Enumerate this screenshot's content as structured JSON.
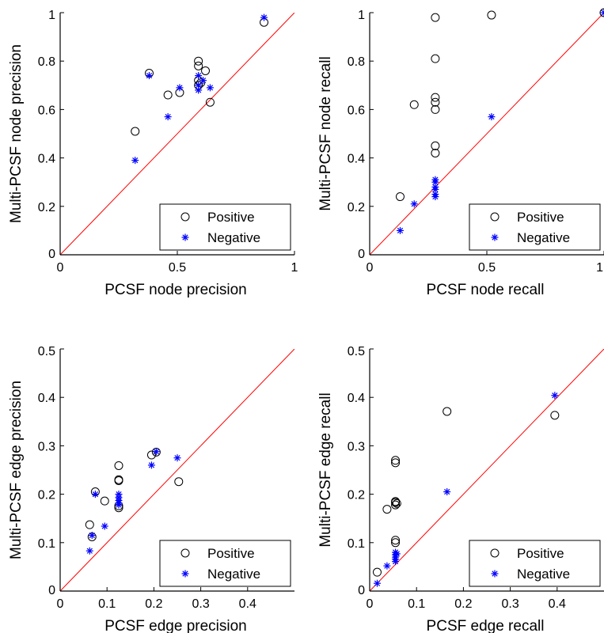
{
  "chart_data": [
    {
      "type": "scatter",
      "xlabel": "PCSF node precision",
      "ylabel": "Multi-PCSF node precision",
      "xlim": [
        0,
        1
      ],
      "ylim": [
        0,
        1
      ],
      "xticks": [
        "0",
        "0.5",
        "1"
      ],
      "yticks": [
        "0",
        "0.2",
        "0.4",
        "0.6",
        "0.8",
        "1"
      ],
      "grid": false,
      "diagonal": true,
      "legend": {
        "position": "bottom-right",
        "entries": [
          "Positive",
          "Negative"
        ]
      },
      "series": [
        {
          "name": "Positive",
          "marker": "circle",
          "color": "#000000",
          "points": [
            [
              0.32,
              0.51
            ],
            [
              0.38,
              0.75
            ],
            [
              0.46,
              0.66
            ],
            [
              0.51,
              0.67
            ],
            [
              0.59,
              0.8
            ],
            [
              0.59,
              0.78
            ],
            [
              0.59,
              0.72
            ],
            [
              0.59,
              0.7
            ],
            [
              0.6,
              0.71
            ],
            [
              0.62,
              0.76
            ],
            [
              0.64,
              0.63
            ],
            [
              0.87,
              0.96
            ]
          ]
        },
        {
          "name": "Negative",
          "marker": "asterisk",
          "color": "#0000ff",
          "points": [
            [
              0.32,
              0.39
            ],
            [
              0.38,
              0.74
            ],
            [
              0.46,
              0.57
            ],
            [
              0.51,
              0.69
            ],
            [
              0.59,
              0.74
            ],
            [
              0.59,
              0.7
            ],
            [
              0.59,
              0.68
            ],
            [
              0.61,
              0.72
            ],
            [
              0.64,
              0.69
            ],
            [
              0.87,
              0.98
            ]
          ]
        }
      ]
    },
    {
      "type": "scatter",
      "xlabel": "PCSF node recall",
      "ylabel": "Multi-PCSF node recall",
      "xlim": [
        0,
        1
      ],
      "ylim": [
        0,
        1
      ],
      "xticks": [
        "0",
        "0.5",
        "1"
      ],
      "yticks": [
        "0",
        "0.2",
        "0.4",
        "0.6",
        "0.8",
        "1"
      ],
      "grid": false,
      "diagonal": true,
      "legend": {
        "position": "bottom-right",
        "entries": [
          "Positive",
          "Negative"
        ]
      },
      "series": [
        {
          "name": "Positive",
          "marker": "circle",
          "color": "#000000",
          "points": [
            [
              0.13,
              0.24
            ],
            [
              0.19,
              0.62
            ],
            [
              0.28,
              0.98
            ],
            [
              0.28,
              0.81
            ],
            [
              0.28,
              0.65
            ],
            [
              0.28,
              0.63
            ],
            [
              0.28,
              0.6
            ],
            [
              0.28,
              0.45
            ],
            [
              0.28,
              0.42
            ],
            [
              0.52,
              0.99
            ],
            [
              1.0,
              1.0
            ]
          ]
        },
        {
          "name": "Negative",
          "marker": "asterisk",
          "color": "#0000ff",
          "points": [
            [
              0.13,
              0.1
            ],
            [
              0.19,
              0.21
            ],
            [
              0.28,
              0.31
            ],
            [
              0.28,
              0.3
            ],
            [
              0.28,
              0.28
            ],
            [
              0.28,
              0.27
            ],
            [
              0.28,
              0.25
            ],
            [
              0.28,
              0.24
            ],
            [
              0.52,
              0.57
            ],
            [
              1.0,
              1.0
            ]
          ]
        }
      ]
    },
    {
      "type": "scatter",
      "xlabel": "PCSF edge precision",
      "ylabel": "Multi-PCSF edge precision",
      "xlim": [
        0,
        0.5
      ],
      "ylim": [
        0,
        0.5
      ],
      "xticks": [
        "0",
        "0.1",
        "0.2",
        "0.3",
        "0.4"
      ],
      "yticks": [
        "0",
        "0.1",
        "0.2",
        "0.3",
        "0.4",
        "0.5"
      ],
      "grid": false,
      "diagonal": true,
      "legend": {
        "position": "bottom-right",
        "entries": [
          "Positive",
          "Negative"
        ]
      },
      "series": [
        {
          "name": "Positive",
          "marker": "circle",
          "color": "#000000",
          "points": [
            [
              0.063,
              0.137
            ],
            [
              0.068,
              0.112
            ],
            [
              0.075,
              0.205
            ],
            [
              0.095,
              0.186
            ],
            [
              0.125,
              0.259
            ],
            [
              0.125,
              0.23
            ],
            [
              0.125,
              0.228
            ],
            [
              0.125,
              0.176
            ],
            [
              0.125,
              0.172
            ],
            [
              0.195,
              0.281
            ],
            [
              0.205,
              0.287
            ],
            [
              0.253,
              0.226
            ]
          ]
        },
        {
          "name": "Negative",
          "marker": "asterisk",
          "color": "#0000ff",
          "points": [
            [
              0.063,
              0.083
            ],
            [
              0.068,
              0.115
            ],
            [
              0.075,
              0.2
            ],
            [
              0.095,
              0.134
            ],
            [
              0.125,
              0.2
            ],
            [
              0.125,
              0.193
            ],
            [
              0.125,
              0.187
            ],
            [
              0.125,
              0.182
            ],
            [
              0.125,
              0.178
            ],
            [
              0.195,
              0.26
            ],
            [
              0.205,
              0.288
            ],
            [
              0.25,
              0.275
            ]
          ]
        }
      ]
    },
    {
      "type": "scatter",
      "xlabel": "PCSF edge recall",
      "ylabel": "Multi-PCSF edge recall",
      "xlim": [
        0,
        0.5
      ],
      "ylim": [
        0,
        0.5
      ],
      "xticks": [
        "0",
        "0.1",
        "0.2",
        "0.3",
        "0.4"
      ],
      "yticks": [
        "0",
        "0.1",
        "0.2",
        "0.3",
        "0.4",
        "0.5"
      ],
      "grid": false,
      "diagonal": true,
      "legend": {
        "position": "bottom-right",
        "entries": [
          "Positive",
          "Negative"
        ]
      },
      "series": [
        {
          "name": "Positive",
          "marker": "circle",
          "color": "#000000",
          "points": [
            [
              0.016,
              0.039
            ],
            [
              0.037,
              0.169
            ],
            [
              0.055,
              0.27
            ],
            [
              0.055,
              0.265
            ],
            [
              0.055,
              0.185
            ],
            [
              0.055,
              0.183
            ],
            [
              0.055,
              0.178
            ],
            [
              0.055,
              0.105
            ],
            [
              0.055,
              0.1
            ],
            [
              0.058,
              0.181
            ],
            [
              0.165,
              0.371
            ],
            [
              0.395,
              0.363
            ]
          ]
        },
        {
          "name": "Negative",
          "marker": "asterisk",
          "color": "#0000ff",
          "points": [
            [
              0.016,
              0.016
            ],
            [
              0.037,
              0.052
            ],
            [
              0.055,
              0.08
            ],
            [
              0.055,
              0.075
            ],
            [
              0.055,
              0.07
            ],
            [
              0.055,
              0.066
            ],
            [
              0.055,
              0.061
            ],
            [
              0.058,
              0.077
            ],
            [
              0.165,
              0.205
            ],
            [
              0.395,
              0.404
            ]
          ]
        }
      ]
    }
  ]
}
